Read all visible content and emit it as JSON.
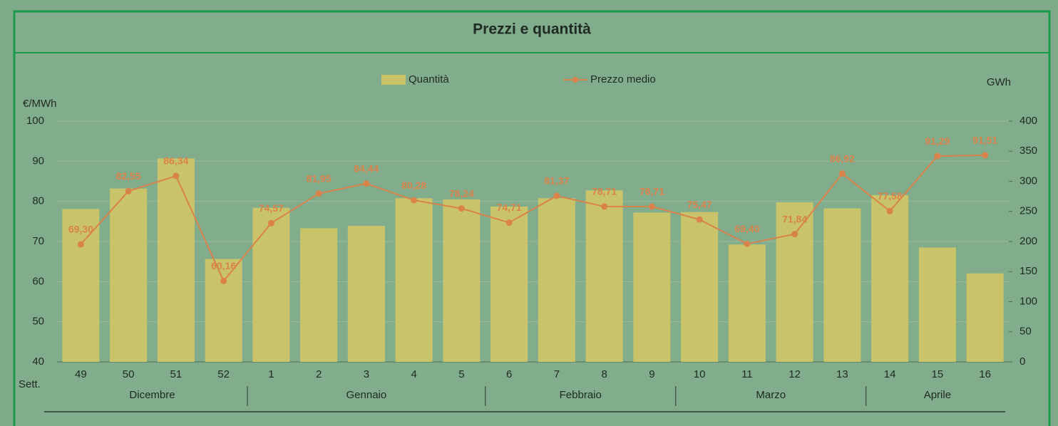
{
  "chart_data": {
    "type": "bar",
    "title": "Prezzi e quantità",
    "y_label": "€/MWh",
    "y2_label": "GWh",
    "x_label": "Sett.",
    "categories": [
      "49",
      "50",
      "51",
      "52",
      "1",
      "2",
      "3",
      "4",
      "5",
      "6",
      "7",
      "8",
      "9",
      "10",
      "11",
      "12",
      "13",
      "14",
      "15",
      "16"
    ],
    "groups": [
      {
        "label": "Dicembre",
        "span": 4
      },
      {
        "label": "Gennaio",
        "span": 5
      },
      {
        "label": "Febbraio",
        "span": 4
      },
      {
        "label": "Marzo",
        "span": 4
      },
      {
        "label": "Aprile",
        "span": 3
      }
    ],
    "series": [
      {
        "name": "Quantità",
        "type": "bar",
        "axis": "y2",
        "color": "#c9c46a",
        "values": [
          254,
          288,
          338,
          171,
          256,
          222,
          226,
          272,
          270,
          258,
          272,
          285,
          248,
          249,
          195,
          265,
          255,
          277,
          190,
          147
        ]
      },
      {
        "name": "Prezzo medio",
        "type": "line",
        "axis": "y",
        "color": "#d9824a",
        "values": [
          69.3,
          82.55,
          86.34,
          60.16,
          74.57,
          81.95,
          84.44,
          80.28,
          78.24,
          74.71,
          81.37,
          78.71,
          78.71,
          75.47,
          69.4,
          71.84,
          86.92,
          77.58,
          91.29,
          91.51
        ],
        "value_labels": [
          "69,30",
          "82,55",
          "86,34",
          "60,16",
          "74,57",
          "81,95",
          "84,44",
          "80,28",
          "78,24",
          "74,71",
          "81,37",
          "78,71",
          "78,71",
          "75,47",
          "69,40",
          "71,84",
          "86,92",
          "77,58",
          "91,29",
          "91,51"
        ]
      }
    ],
    "ylim": [
      40,
      100
    ],
    "yticks": [
      40,
      50,
      60,
      70,
      80,
      90,
      100
    ],
    "y2lim": [
      0,
      400
    ],
    "y2ticks": [
      0,
      50,
      100,
      150,
      200,
      250,
      300,
      350,
      400
    ],
    "grid": true
  }
}
